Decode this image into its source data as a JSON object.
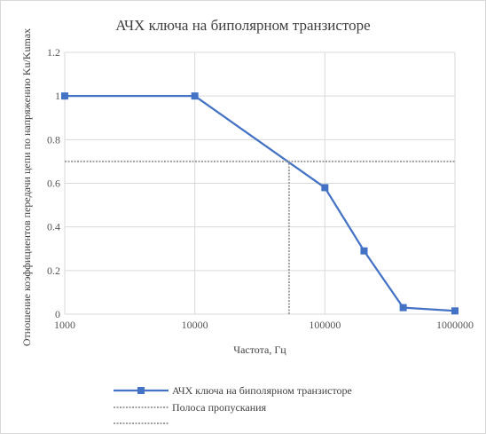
{
  "chart_data": {
    "type": "line",
    "title": "АЧХ ключа на биполярном транзисторе",
    "xlabel": "Частота, Гц",
    "ylabel": "Отношение коэффициентов передачи цепи по напряжению Ku/Kumax",
    "x_scale": "log",
    "xlim": [
      1000,
      1000000
    ],
    "ylim": [
      0,
      1.2
    ],
    "x_ticks": [
      "1000",
      "10000",
      "100000",
      "1000000"
    ],
    "y_ticks": [
      "0",
      "0.2",
      "0.4",
      "0.6",
      "0.8",
      "1",
      "1.2"
    ],
    "grid": true,
    "legend_position": "bottom",
    "series": [
      {
        "name": "АЧХ ключа на биполярном транзисторе",
        "color": "#4472C4",
        "marker": "square",
        "x": [
          1000,
          10000,
          100000,
          200000,
          400000,
          1000000
        ],
        "y": [
          1,
          1,
          0.58,
          0.29,
          0.03,
          0.015
        ]
      },
      {
        "name": "Полоса пропускания",
        "color": "#a0a0a0",
        "style": "dotted",
        "x": [
          1000,
          1000000
        ],
        "y": [
          0.7,
          0.7
        ]
      },
      {
        "name": "",
        "color": "#a0a0a0",
        "style": "dotted",
        "x": [
          53000,
          53000
        ],
        "y": [
          0,
          0.7
        ]
      }
    ]
  }
}
